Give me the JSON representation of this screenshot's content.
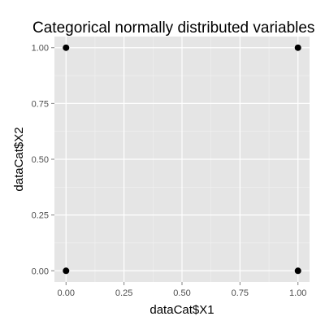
{
  "chart_data": {
    "type": "scatter",
    "title": "Categorical normally distributed variables",
    "xlabel": "dataCat$X1",
    "ylabel": "dataCat$X2",
    "xlim": [
      -0.05,
      1.05
    ],
    "ylim": [
      -0.05,
      1.05
    ],
    "x_ticks": [
      0,
      0.25,
      0.5,
      0.75,
      1
    ],
    "x_tick_labels": [
      "0.00",
      "0.25",
      "0.50",
      "0.75",
      "1.00"
    ],
    "y_ticks": [
      0,
      0.25,
      0.5,
      0.75,
      1
    ],
    "y_tick_labels": [
      "0.00",
      "0.25",
      "0.50",
      "0.75",
      "1.00"
    ],
    "grid": true,
    "points": [
      {
        "x": 0,
        "y": 1
      },
      {
        "x": 1,
        "y": 1
      },
      {
        "x": 0,
        "y": 0
      },
      {
        "x": 1,
        "y": 0
      }
    ],
    "colors": {
      "panel": "#e5e5e5",
      "grid_major": "#ffffff",
      "grid_minor": "#f2f2f2",
      "point": "#000000",
      "tick": "#7f7f7f",
      "tick_text": "#4d4d4d"
    }
  }
}
